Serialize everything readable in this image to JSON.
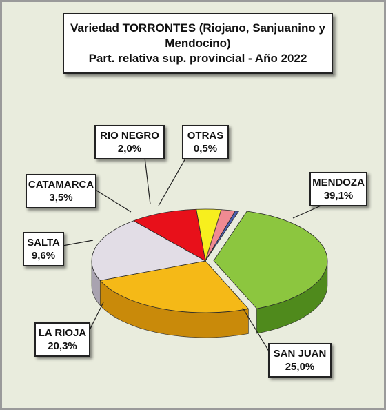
{
  "chart_data": {
    "type": "pie",
    "title_lines": [
      "Variedad TORRONTES (Riojano, Sanjuanino y",
      "Mendocino)",
      "Part. relativa sup. provincial - Año 2022"
    ],
    "slices": [
      {
        "label": "MENDOZA",
        "value": 39.1,
        "value_text": "39,1%",
        "color": "#8cc63f",
        "side_color": "#4f8a1c"
      },
      {
        "label": "SAN JUAN",
        "value": 25.0,
        "value_text": "25,0%",
        "color": "#f5b917",
        "side_color": "#c98a0a"
      },
      {
        "label": "LA RIOJA",
        "value": 20.3,
        "value_text": "20,3%",
        "color": "#e2dde6",
        "side_color": "#a9a3b0"
      },
      {
        "label": "SALTA",
        "value": 9.6,
        "value_text": "9,6%",
        "color": "#e8101a",
        "side_color": "#9c0a10"
      },
      {
        "label": "CATAMARCA",
        "value": 3.5,
        "value_text": "3,5%",
        "color": "#f7ef1e",
        "side_color": "#b9b20c"
      },
      {
        "label": "RIO NEGRO",
        "value": 2.0,
        "value_text": "2,0%",
        "color": "#f08a92",
        "side_color": "#c15c66"
      },
      {
        "label": "OTRAS",
        "value": 0.5,
        "value_text": "0,5%",
        "color": "#4a5fb0",
        "side_color": "#2c3a78"
      }
    ]
  }
}
